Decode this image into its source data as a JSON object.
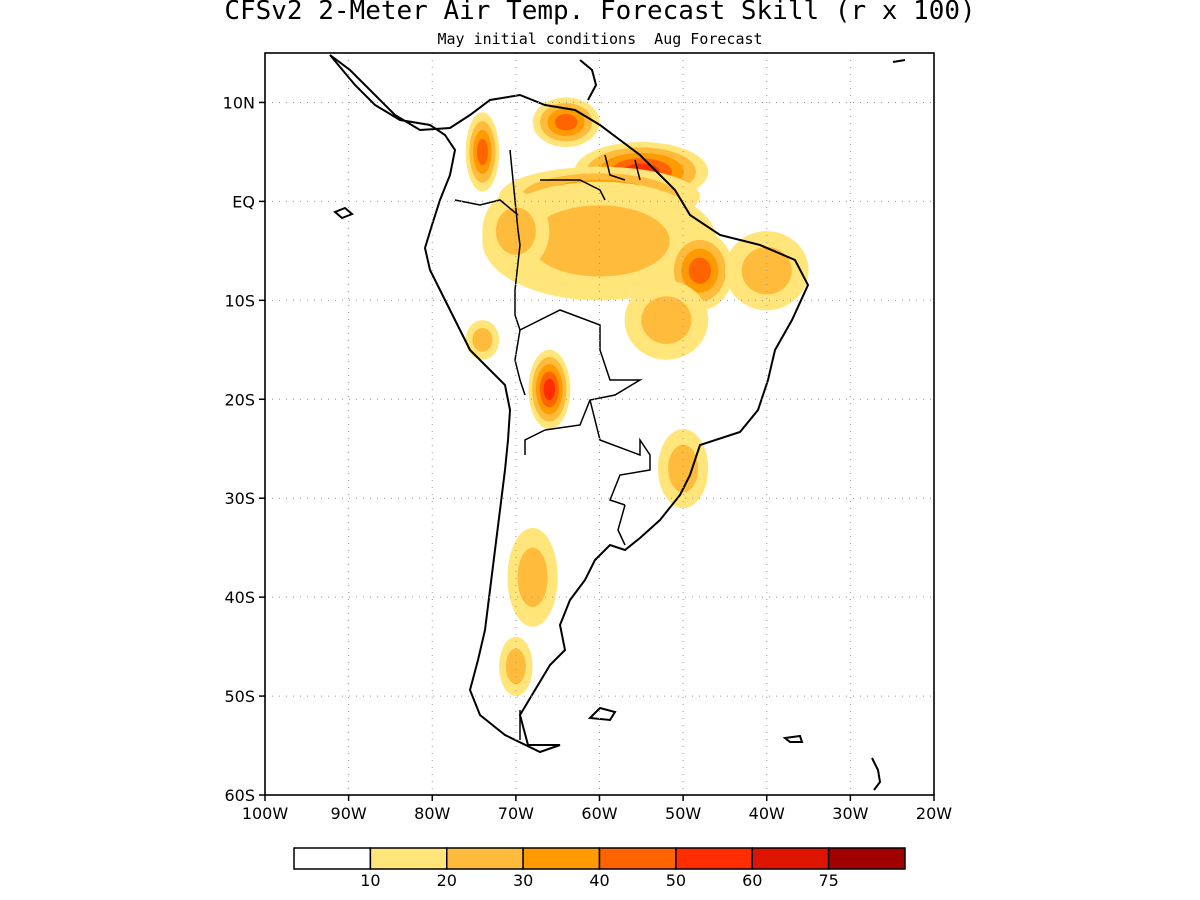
{
  "title": "CFSv2 2-Meter Air Temp. Forecast Skill (r x 100)",
  "subtitle": "May initial conditions  Aug Forecast",
  "map": {
    "lon_range": [
      -100,
      -20
    ],
    "lat_range": [
      -60,
      15
    ],
    "lon_ticks": [
      {
        "lon": -100,
        "label": "100W"
      },
      {
        "lon": -90,
        "label": "90W"
      },
      {
        "lon": -80,
        "label": "80W"
      },
      {
        "lon": -70,
        "label": "70W"
      },
      {
        "lon": -60,
        "label": "60W"
      },
      {
        "lon": -50,
        "label": "50W"
      },
      {
        "lon": -40,
        "label": "40W"
      },
      {
        "lon": -30,
        "label": "30W"
      },
      {
        "lon": -20,
        "label": "20W"
      }
    ],
    "lat_ticks": [
      {
        "lat": 10,
        "label": "10N"
      },
      {
        "lat": 0,
        "label": "EQ"
      },
      {
        "lat": -10,
        "label": "10S"
      },
      {
        "lat": -20,
        "label": "20S"
      },
      {
        "lat": -30,
        "label": "30S"
      },
      {
        "lat": -40,
        "label": "40S"
      },
      {
        "lat": -50,
        "label": "50S"
      },
      {
        "lat": -60,
        "label": "60S"
      }
    ],
    "grid": "dotted"
  },
  "colorbar": {
    "colors": [
      "#ffffff",
      "#ffe57a",
      "#ffbb3b",
      "#ff9a00",
      "#ff6400",
      "#ff2d00",
      "#dc1400",
      "#a00000"
    ],
    "labels": [
      "10",
      "20",
      "30",
      "40",
      "50",
      "60",
      "75"
    ]
  },
  "skill_regions": [
    {
      "lon": -64,
      "lat": 8,
      "rx": 4,
      "ry": 2.5,
      "level": 4
    },
    {
      "lon": -74,
      "lat": 5,
      "rx": 2,
      "ry": 4,
      "level": 4
    },
    {
      "lon": -55,
      "lat": 3,
      "rx": 8,
      "ry": 3,
      "level": 5
    },
    {
      "lon": -60,
      "lat": 0.5,
      "rx": 12,
      "ry": 3,
      "level": 4
    },
    {
      "lon": -60,
      "lat": -4,
      "rx": 14,
      "ry": 6,
      "level": 2
    },
    {
      "lon": -48,
      "lat": -7,
      "rx": 4,
      "ry": 4,
      "level": 4
    },
    {
      "lon": -40,
      "lat": -7,
      "rx": 5,
      "ry": 4,
      "level": 2
    },
    {
      "lon": -52,
      "lat": -12,
      "rx": 5,
      "ry": 4,
      "level": 2
    },
    {
      "lon": -70,
      "lat": -3,
      "rx": 4,
      "ry": 4,
      "level": 2
    },
    {
      "lon": -66,
      "lat": -19,
      "rx": 2.5,
      "ry": 4,
      "level": 5
    },
    {
      "lon": -50,
      "lat": -27,
      "rx": 3,
      "ry": 4,
      "level": 2
    },
    {
      "lon": -68,
      "lat": -38,
      "rx": 3,
      "ry": 5,
      "level": 2
    },
    {
      "lon": -70,
      "lat": -47,
      "rx": 2,
      "ry": 3,
      "level": 2
    },
    {
      "lon": -74,
      "lat": -14,
      "rx": 2,
      "ry": 2,
      "level": 2
    }
  ]
}
